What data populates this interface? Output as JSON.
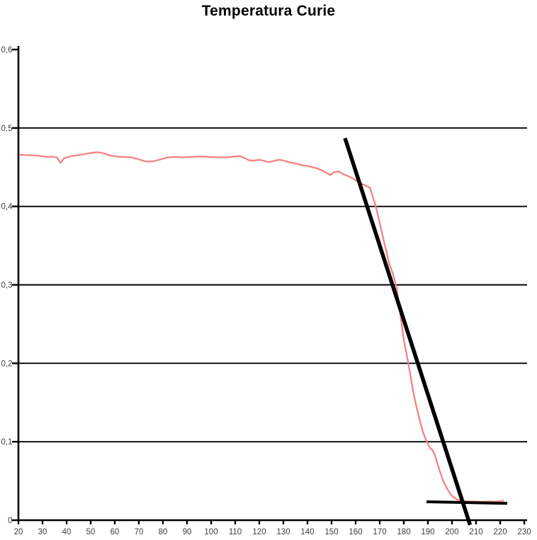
{
  "title": {
    "text": "Temperatura Curie",
    "color": "#000000"
  },
  "colors": {
    "background": "#ffffff",
    "curve": "#F58282",
    "annotation": "#000000",
    "axis": "#000000",
    "grid": "#000000",
    "tick_label": "#3d3d3d"
  },
  "axes": {
    "x": {
      "min": 20,
      "max": 230,
      "ticks": [
        20,
        30,
        40,
        50,
        60,
        70,
        80,
        90,
        100,
        110,
        120,
        130,
        140,
        150,
        160,
        170,
        180,
        190,
        200,
        210,
        220,
        230
      ],
      "tick_labels": [
        "20",
        "30",
        "40",
        "50",
        "60",
        "70",
        "80",
        "90",
        "100",
        "110",
        "120",
        "130",
        "140",
        "150",
        "160",
        "170",
        "180",
        "190",
        "200",
        "210",
        "220",
        "230"
      ]
    },
    "y": {
      "min": 0,
      "max": 0.6,
      "ticks": [
        0,
        0.1,
        0.2,
        0.3,
        0.4,
        0.5,
        0.6
      ],
      "tick_labels": [
        "0",
        "0,1",
        "0,2",
        "0,3",
        "0,4",
        "0,5",
        "0,6"
      ],
      "gridline_values": [
        0.1,
        0.2,
        0.3,
        0.4,
        0.5
      ]
    }
  },
  "chart_data": {
    "type": "line",
    "title": "Temperatura Curie",
    "xlabel": "",
    "ylabel": "",
    "xlim": [
      20,
      230
    ],
    "ylim": [
      0,
      0.6
    ],
    "grid": "horizontal-only",
    "legend": "none",
    "decimal_separator": ",",
    "series": [
      {
        "name": "magnetization-curve",
        "color": "#F58282",
        "stroke_width": 2.3,
        "points": [
          [
            20,
            0.466
          ],
          [
            23,
            0.4655
          ],
          [
            26,
            0.465
          ],
          [
            29,
            0.4645
          ],
          [
            32,
            0.463
          ],
          [
            34,
            0.4635
          ],
          [
            36,
            0.4625
          ],
          [
            37.5,
            0.4555
          ],
          [
            39,
            0.4615
          ],
          [
            42,
            0.464
          ],
          [
            45,
            0.4655
          ],
          [
            48,
            0.467
          ],
          [
            51,
            0.4685
          ],
          [
            53,
            0.469
          ],
          [
            55,
            0.468
          ],
          [
            58,
            0.465
          ],
          [
            61,
            0.4635
          ],
          [
            64,
            0.463
          ],
          [
            67,
            0.4625
          ],
          [
            70,
            0.46
          ],
          [
            72,
            0.458
          ],
          [
            74,
            0.457
          ],
          [
            76,
            0.4575
          ],
          [
            79,
            0.46
          ],
          [
            82,
            0.4625
          ],
          [
            85,
            0.463
          ],
          [
            88,
            0.4625
          ],
          [
            91,
            0.463
          ],
          [
            94,
            0.4635
          ],
          [
            97,
            0.4635
          ],
          [
            100,
            0.463
          ],
          [
            103,
            0.4625
          ],
          [
            106,
            0.4625
          ],
          [
            109,
            0.4635
          ],
          [
            112,
            0.464
          ],
          [
            114,
            0.4615
          ],
          [
            116,
            0.4585
          ],
          [
            118,
            0.4585
          ],
          [
            120,
            0.4595
          ],
          [
            122,
            0.458
          ],
          [
            124,
            0.4565
          ],
          [
            126,
            0.458
          ],
          [
            128,
            0.4595
          ],
          [
            130,
            0.4585
          ],
          [
            132,
            0.4565
          ],
          [
            134,
            0.4555
          ],
          [
            136,
            0.454
          ],
          [
            138,
            0.4525
          ],
          [
            140,
            0.4515
          ],
          [
            142,
            0.45
          ],
          [
            144,
            0.4485
          ],
          [
            146,
            0.446
          ],
          [
            148,
            0.4425
          ],
          [
            149.5,
            0.44
          ],
          [
            151,
            0.4435
          ],
          [
            153,
            0.4445
          ],
          [
            155,
            0.441
          ],
          [
            157,
            0.4385
          ],
          [
            159,
            0.4355
          ],
          [
            161,
            0.4315
          ],
          [
            163,
            0.428
          ],
          [
            165,
            0.4255
          ],
          [
            166,
            0.4235
          ],
          [
            167,
            0.4135
          ],
          [
            168,
            0.404
          ],
          [
            169,
            0.392
          ],
          [
            170,
            0.379
          ],
          [
            171,
            0.3655
          ],
          [
            172,
            0.352
          ],
          [
            173,
            0.3395
          ],
          [
            174,
            0.3265
          ],
          [
            175,
            0.3185
          ],
          [
            176,
            0.3085
          ],
          [
            177,
            0.2965
          ],
          [
            178,
            0.2755
          ],
          [
            179,
            0.2525
          ],
          [
            180,
            0.2295
          ],
          [
            181,
            0.214
          ],
          [
            182,
            0.198
          ],
          [
            183,
            0.18
          ],
          [
            184,
            0.162
          ],
          [
            185,
            0.148
          ],
          [
            186,
            0.135
          ],
          [
            187,
            0.123
          ],
          [
            188,
            0.112
          ],
          [
            189,
            0.104
          ],
          [
            190,
            0.097
          ],
          [
            191,
            0.0915
          ],
          [
            192,
            0.089
          ],
          [
            193,
            0.082
          ],
          [
            194,
            0.0715
          ],
          [
            195,
            0.062
          ],
          [
            196,
            0.053
          ],
          [
            197,
            0.046
          ],
          [
            198,
            0.04
          ],
          [
            199,
            0.035
          ],
          [
            200,
            0.031
          ],
          [
            201,
            0.0285
          ],
          [
            202,
            0.0265
          ],
          [
            203,
            0.0252
          ],
          [
            204,
            0.0245
          ],
          [
            205,
            0.0242
          ],
          [
            206,
            0.024
          ],
          [
            208,
            0.0238
          ],
          [
            210,
            0.0236
          ],
          [
            212,
            0.0235
          ],
          [
            214,
            0.0236
          ],
          [
            216,
            0.0238
          ],
          [
            218,
            0.0236
          ],
          [
            220,
            0.0242
          ],
          [
            221.5,
            0.0252
          ]
        ]
      },
      {
        "name": "tangent-line",
        "color": "#000000",
        "stroke_width": 5.5,
        "points": [
          [
            155.6,
            0.487
          ],
          [
            207.5,
            -0.006
          ]
        ]
      },
      {
        "name": "baseline-line",
        "color": "#000000",
        "stroke_width": 4,
        "points": [
          [
            189.4,
            0.0235
          ],
          [
            222.9,
            0.0215
          ]
        ]
      }
    ]
  }
}
